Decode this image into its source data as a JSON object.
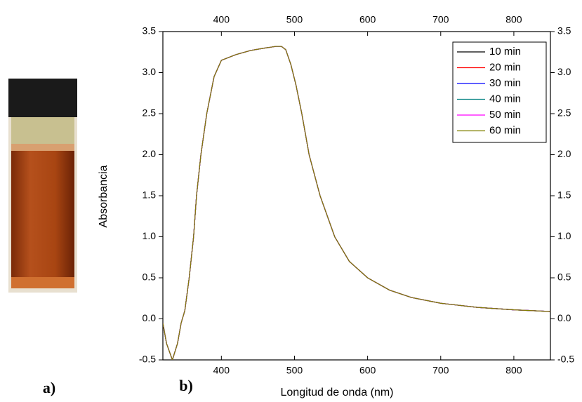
{
  "chart_data": {
    "type": "line",
    "xlabel": "Longitud de onda (nm)",
    "ylabel": "Absorbancia",
    "annotations": [
      "a)",
      "b)"
    ],
    "x": [
      320,
      325,
      333,
      340,
      345,
      350,
      356,
      362,
      366,
      372,
      380,
      390,
      400,
      420,
      440,
      460,
      475,
      482,
      488,
      495,
      502,
      510,
      520,
      535,
      555,
      575,
      600,
      630,
      660,
      700,
      750,
      800,
      850
    ],
    "series": [
      {
        "name": "10 min",
        "color": "#000000",
        "values": [
          -0.05,
          -0.3,
          -0.5,
          -0.3,
          -0.05,
          0.1,
          0.5,
          1.0,
          1.5,
          2.0,
          2.5,
          2.95,
          3.15,
          3.22,
          3.27,
          3.3,
          3.32,
          3.32,
          3.28,
          3.1,
          2.85,
          2.5,
          2.0,
          1.5,
          1.0,
          0.7,
          0.5,
          0.35,
          0.26,
          0.19,
          0.14,
          0.11,
          0.09
        ]
      },
      {
        "name": "20 min",
        "color": "#ff0000",
        "values": [
          -0.05,
          -0.3,
          -0.5,
          -0.3,
          -0.05,
          0.1,
          0.5,
          1.0,
          1.5,
          2.0,
          2.5,
          2.95,
          3.15,
          3.22,
          3.27,
          3.3,
          3.32,
          3.32,
          3.28,
          3.1,
          2.85,
          2.5,
          2.0,
          1.5,
          1.0,
          0.7,
          0.5,
          0.35,
          0.26,
          0.19,
          0.14,
          0.11,
          0.09
        ]
      },
      {
        "name": "30 min",
        "color": "#0000ff",
        "values": [
          -0.05,
          -0.3,
          -0.5,
          -0.3,
          -0.05,
          0.1,
          0.5,
          1.0,
          1.5,
          2.0,
          2.5,
          2.95,
          3.15,
          3.22,
          3.27,
          3.3,
          3.32,
          3.32,
          3.28,
          3.1,
          2.85,
          2.5,
          2.0,
          1.5,
          1.0,
          0.7,
          0.5,
          0.35,
          0.26,
          0.19,
          0.14,
          0.11,
          0.09
        ]
      },
      {
        "name": "40 min",
        "color": "#008080",
        "values": [
          -0.05,
          -0.3,
          -0.5,
          -0.3,
          -0.05,
          0.1,
          0.5,
          1.0,
          1.5,
          2.0,
          2.5,
          2.95,
          3.15,
          3.22,
          3.27,
          3.3,
          3.32,
          3.32,
          3.28,
          3.1,
          2.85,
          2.5,
          2.0,
          1.5,
          1.0,
          0.7,
          0.5,
          0.35,
          0.26,
          0.19,
          0.14,
          0.11,
          0.09
        ]
      },
      {
        "name": "50 min",
        "color": "#ff00ff",
        "values": [
          -0.05,
          -0.3,
          -0.5,
          -0.3,
          -0.05,
          0.1,
          0.5,
          1.0,
          1.5,
          2.0,
          2.5,
          2.95,
          3.15,
          3.22,
          3.27,
          3.3,
          3.32,
          3.32,
          3.28,
          3.1,
          2.85,
          2.5,
          2.0,
          1.5,
          1.0,
          0.7,
          0.5,
          0.35,
          0.26,
          0.19,
          0.14,
          0.11,
          0.09
        ]
      },
      {
        "name": "60 min",
        "color": "#808000",
        "values": [
          -0.05,
          -0.3,
          -0.5,
          -0.3,
          -0.05,
          0.1,
          0.5,
          1.0,
          1.5,
          2.0,
          2.5,
          2.95,
          3.15,
          3.22,
          3.27,
          3.3,
          3.32,
          3.32,
          3.28,
          3.1,
          2.85,
          2.5,
          2.0,
          1.5,
          1.0,
          0.7,
          0.5,
          0.35,
          0.26,
          0.19,
          0.14,
          0.11,
          0.09
        ]
      }
    ],
    "xlim": [
      320,
      850
    ],
    "xticks": [
      400,
      500,
      600,
      700,
      800
    ],
    "ylim": [
      -0.5,
      3.5
    ],
    "yticks": [
      -0.5,
      {
        "value": 0,
        "label": "0.0"
      },
      0.5,
      {
        "value": 1,
        "label": "1.0"
      },
      1.5,
      {
        "value": 2,
        "label": "2.0"
      },
      2.5,
      {
        "value": 3,
        "label": "3.0"
      },
      3.5
    ],
    "legend": "top-right"
  }
}
